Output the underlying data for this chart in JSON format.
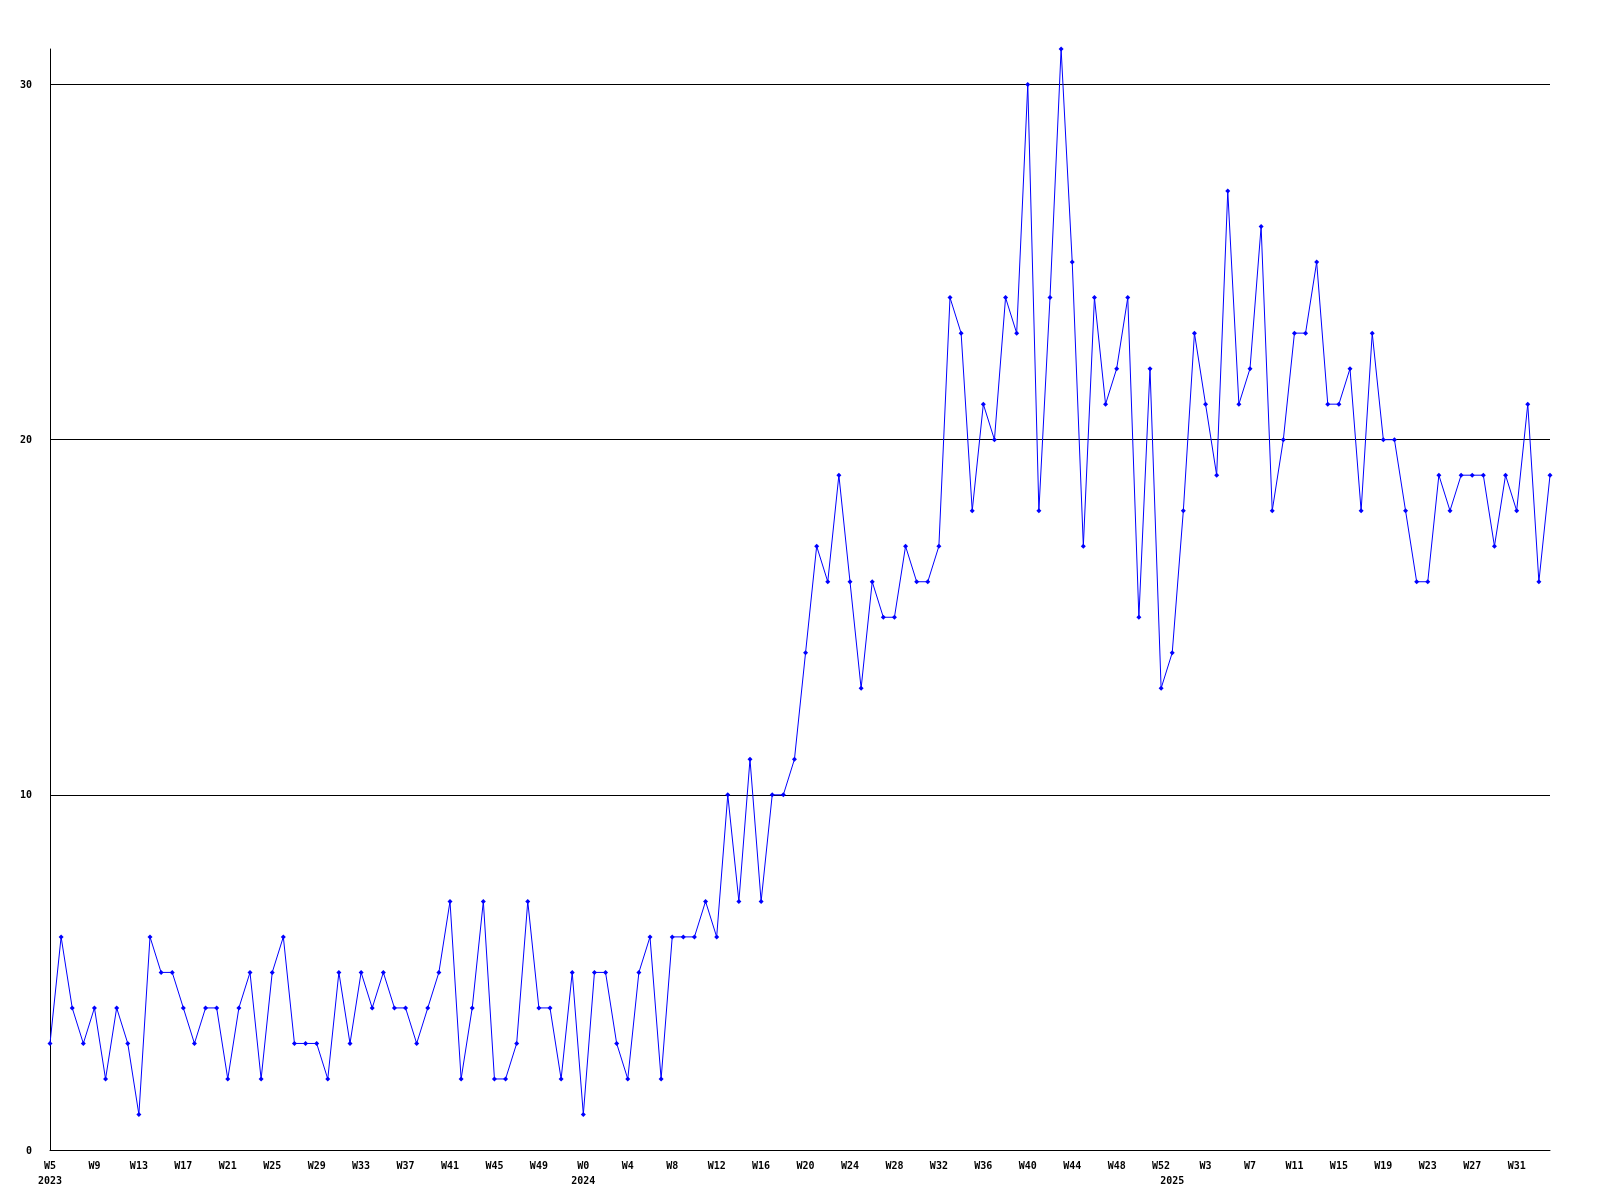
{
  "chart_data": {
    "type": "line",
    "categories": [
      "W5\n2023",
      null,
      null,
      null,
      "W9",
      null,
      null,
      null,
      "W13",
      null,
      null,
      null,
      "W17",
      null,
      null,
      null,
      "W21",
      null,
      null,
      null,
      "W25",
      null,
      null,
      null,
      "W29",
      null,
      null,
      null,
      "W33",
      null,
      null,
      null,
      "W37",
      null,
      null,
      null,
      "W41",
      null,
      null,
      null,
      "W45",
      null,
      null,
      null,
      "W49",
      null,
      null,
      null,
      "W0\n2024",
      null,
      null,
      null,
      "W4",
      null,
      null,
      null,
      "W8",
      null,
      null,
      null,
      "W12",
      null,
      null,
      null,
      "W16",
      null,
      null,
      null,
      "W20",
      null,
      null,
      null,
      "W24",
      null,
      null,
      null,
      "W28",
      null,
      null,
      null,
      "W32",
      null,
      null,
      null,
      "W36",
      null,
      null,
      null,
      "W40",
      null,
      null,
      null,
      "W44",
      null,
      null,
      null,
      "W48",
      null,
      null,
      null,
      "W52",
      "\n2025",
      null,
      null,
      "W3",
      null,
      null,
      null,
      "W7",
      null,
      null,
      null,
      "W11",
      null,
      null,
      null,
      "W15",
      null,
      null,
      null,
      "W19",
      null,
      null,
      null,
      "W23",
      null,
      null,
      null,
      "W27",
      null,
      null,
      null,
      "W31",
      null,
      null,
      null
    ],
    "series": [
      {
        "color": "#0000ff",
        "values": [
          3,
          6,
          4,
          3,
          4,
          2,
          4,
          3,
          1,
          6,
          5,
          5,
          4,
          3,
          4,
          4,
          2,
          4,
          5,
          2,
          5,
          6,
          3,
          3,
          3,
          2,
          5,
          3,
          5,
          4,
          5,
          4,
          4,
          3,
          4,
          5,
          7,
          2,
          4,
          7,
          2,
          2,
          3,
          7,
          4,
          4,
          2,
          5,
          1,
          5,
          5,
          3,
          2,
          5,
          6,
          2,
          6,
          6,
          6,
          7,
          6,
          10,
          7,
          11,
          7,
          10,
          10,
          11,
          14,
          17,
          16,
          19,
          16,
          13,
          16,
          15,
          15,
          17,
          16,
          16,
          17,
          24,
          23,
          18,
          21,
          20,
          24,
          23,
          30,
          18,
          24,
          31,
          25,
          17,
          24,
          21,
          22,
          24,
          15,
          22,
          13,
          14,
          18,
          23,
          21,
          19,
          27,
          21,
          22,
          26,
          18,
          20,
          23,
          23,
          25,
          21,
          21,
          22,
          18,
          23,
          20,
          20,
          18,
          16,
          16,
          19,
          18,
          19,
          19,
          19,
          17,
          19,
          18,
          21,
          16,
          19
        ]
      }
    ],
    "ylim": [
      0,
      31
    ],
    "yticks": [
      0,
      10,
      20,
      30
    ],
    "grid": "y",
    "marker": "diamond",
    "line_style": "solid"
  }
}
